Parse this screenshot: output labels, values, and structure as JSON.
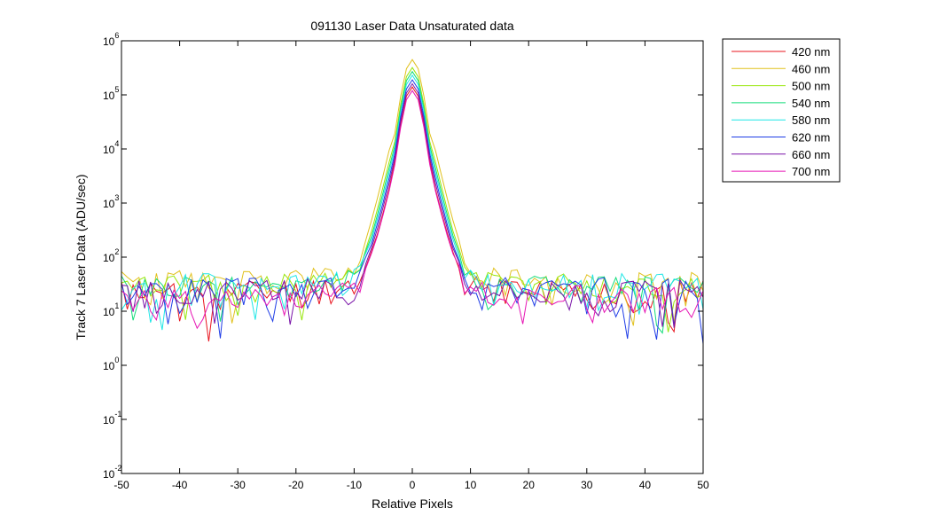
{
  "chart_data": {
    "type": "line",
    "title": "091130 Laser Data  Unsaturated data",
    "xlabel": "Relative Pixels",
    "ylabel": "Track 7 Laser Data (ADU/sec)",
    "xlim": [
      -50,
      50
    ],
    "ylim": [
      0.01,
      1000000
    ],
    "yscale": "log",
    "grid": false,
    "legend_position": "outside-top-right",
    "x_ticks": [
      -50,
      -40,
      -30,
      -20,
      -10,
      0,
      10,
      20,
      30,
      40,
      50
    ],
    "x_tick_labels": [
      "-50",
      "-40",
      "-30",
      "-20",
      "-10",
      "0",
      "10",
      "20",
      "30",
      "40",
      "50"
    ],
    "y_tick_exponents": [
      -2,
      -1,
      0,
      1,
      2,
      3,
      4,
      5,
      6
    ],
    "y_tick_labels": [
      {
        "base": "10",
        "exp": "-2"
      },
      {
        "base": "10",
        "exp": "-1"
      },
      {
        "base": "10",
        "exp": "0"
      },
      {
        "base": "10",
        "exp": "1"
      },
      {
        "base": "10",
        "exp": "2"
      },
      {
        "base": "10",
        "exp": "3"
      },
      {
        "base": "10",
        "exp": "4"
      },
      {
        "base": "10",
        "exp": "5"
      },
      {
        "base": "10",
        "exp": "6"
      }
    ],
    "series": [
      {
        "name": "420 nm",
        "color": "#e8141e",
        "peak": 140000,
        "wing": 0.8,
        "level": 20,
        "seed": 11
      },
      {
        "name": "460 nm",
        "color": "#e1c11d",
        "peak": 450000,
        "wing": 1.35,
        "level": 30,
        "seed": 23
      },
      {
        "name": "500 nm",
        "color": "#99e60c",
        "peak": 320000,
        "wing": 1.15,
        "level": 25,
        "seed": 37
      },
      {
        "name": "540 nm",
        "color": "#13dc7a",
        "peak": 270000,
        "wing": 1.05,
        "level": 24,
        "seed": 41
      },
      {
        "name": "580 nm",
        "color": "#1ee6e6",
        "peak": 230000,
        "wing": 1.0,
        "level": 26,
        "seed": 53
      },
      {
        "name": "620 nm",
        "color": "#1e3ce6",
        "peak": 190000,
        "wing": 0.95,
        "level": 22,
        "seed": 67
      },
      {
        "name": "660 nm",
        "color": "#7a14a8",
        "peak": 160000,
        "wing": 0.9,
        "level": 20,
        "seed": 79
      },
      {
        "name": "700 nm",
        "color": "#e614b4",
        "peak": 120000,
        "wing": 0.85,
        "level": 15,
        "seed": 97
      }
    ]
  }
}
